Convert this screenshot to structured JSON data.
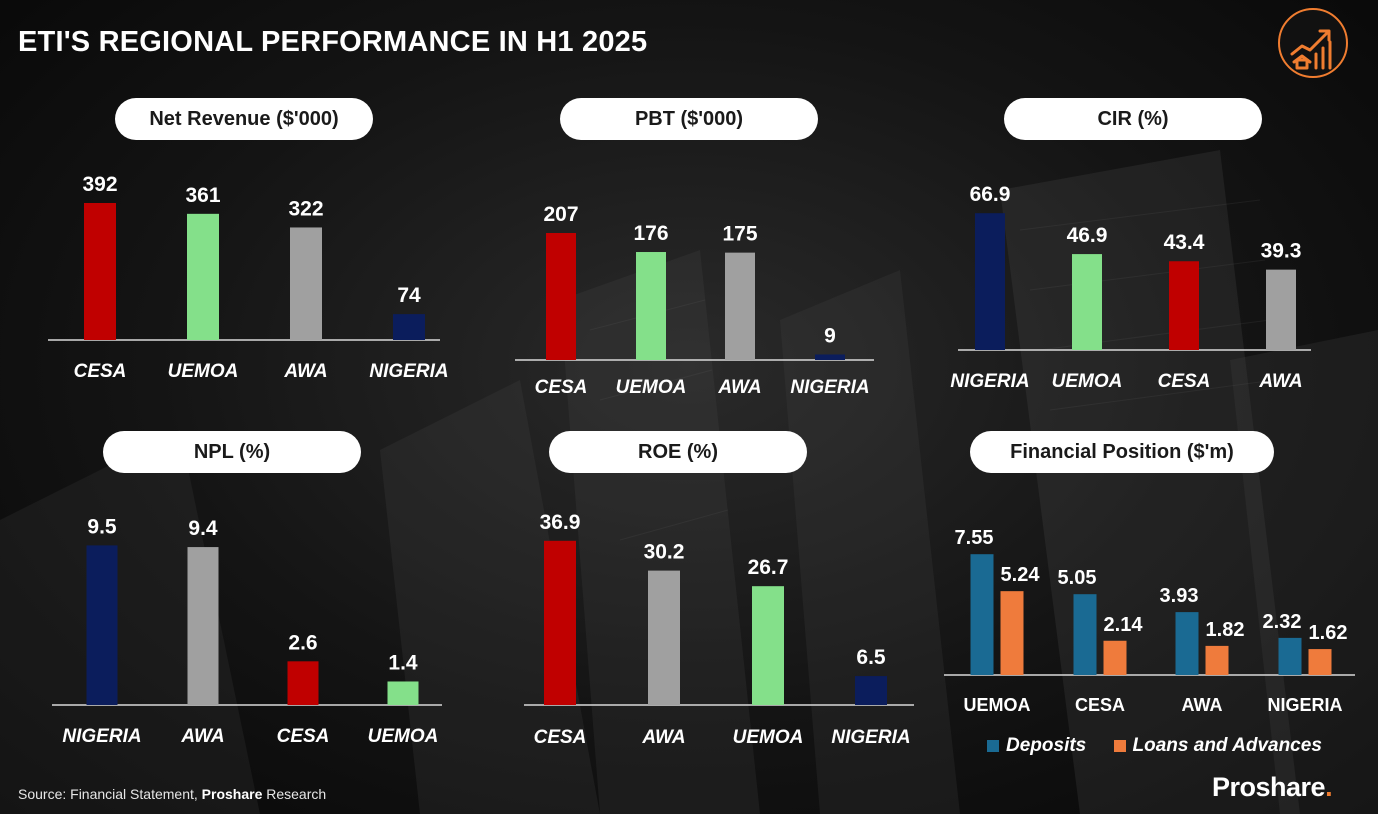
{
  "title": "ETI'S REGIONAL PERFORMANCE IN H1 2025",
  "source": {
    "prefix": "Source: Financial Statement, ",
    "brand": "Proshare",
    "suffix": " Research"
  },
  "brand": {
    "name": "Proshare",
    "dot": "."
  },
  "colors": {
    "CESA": "#c00000",
    "UEMOA": "#84e08a",
    "AWA": "#a0a0a0",
    "NIGERIA": "#0b1d5c",
    "deposits": "#1a6a93",
    "loans": "#ef7b3c",
    "axis": "#d9d9d9",
    "accent": "#f07d30"
  },
  "logo_icon": "house-growth-chart-icon",
  "chart_data": [
    {
      "type": "bar",
      "title": "Net Revenue ($'000)",
      "categories": [
        "CESA",
        "UEMOA",
        "AWA",
        "NIGERIA"
      ],
      "values": [
        392,
        361,
        322,
        74
      ],
      "labels": [
        "392",
        "361",
        "322",
        "74"
      ]
    },
    {
      "type": "bar",
      "title": "PBT ($'000)",
      "categories": [
        "CESA",
        "UEMOA",
        "AWA",
        "NIGERIA"
      ],
      "values": [
        207,
        176,
        175,
        9
      ],
      "labels": [
        "207",
        "176",
        "175",
        "9"
      ]
    },
    {
      "type": "bar",
      "title": "CIR (%)",
      "categories": [
        "NIGERIA",
        "UEMOA",
        "CESA",
        "AWA"
      ],
      "values": [
        66.9,
        46.9,
        43.4,
        39.3
      ],
      "labels": [
        "66.9",
        "46.9",
        "43.4",
        "39.3"
      ]
    },
    {
      "type": "bar",
      "title": "NPL (%)",
      "categories": [
        "NIGERIA",
        "AWA",
        "CESA",
        "UEMOA"
      ],
      "values": [
        9.5,
        9.4,
        2.6,
        1.4
      ],
      "labels": [
        "9.5",
        "9.4",
        "2.6",
        "1.4"
      ]
    },
    {
      "type": "bar",
      "title": "ROE (%)",
      "categories": [
        "CESA",
        "AWA",
        "UEMOA",
        "NIGERIA"
      ],
      "values": [
        36.9,
        30.2,
        26.7,
        6.5
      ],
      "labels": [
        "36.9",
        "30.2",
        "26.7",
        "6.5"
      ]
    },
    {
      "type": "bar",
      "title": "Financial Position ($'m)",
      "categories": [
        "UEMOA",
        "CESA",
        "AWA",
        "NIGERIA"
      ],
      "series": [
        {
          "name": "Deposits",
          "values": [
            7.55,
            5.05,
            3.93,
            2.32
          ],
          "labels": [
            "7.55",
            "5.05",
            "3.93",
            "2.32"
          ]
        },
        {
          "name": "Loans and Advances",
          "values": [
            5.24,
            2.14,
            1.82,
            1.62
          ],
          "labels": [
            "5.24",
            "2.14",
            "1.82",
            "1.62"
          ]
        }
      ],
      "legend": "bottom"
    }
  ]
}
